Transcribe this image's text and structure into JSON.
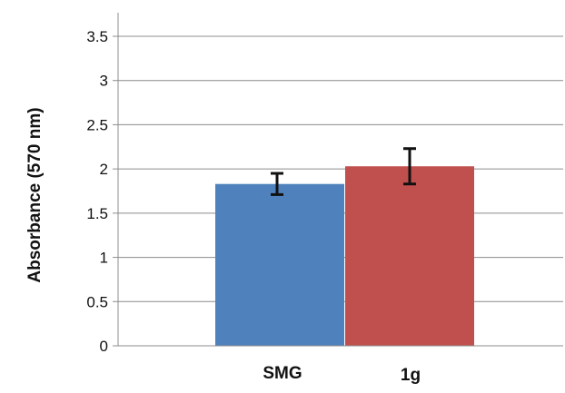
{
  "chart_data": {
    "type": "bar",
    "title": "",
    "xlabel": "",
    "ylabel": "Absorbance (570 nm)",
    "categories": [
      "SMG",
      "1g"
    ],
    "values": [
      1.83,
      2.03
    ],
    "errors": [
      0.12,
      0.2
    ],
    "colors": [
      "#4f81bd",
      "#c0504d"
    ],
    "ylim": [
      0,
      3.5
    ],
    "yticks": [
      0,
      0.5,
      1,
      1.5,
      2,
      2.5,
      3,
      3.5
    ],
    "ytick_labels": [
      "0",
      "0.5",
      "1",
      "1.5",
      "2",
      "2.5",
      "3",
      "3.5"
    ],
    "grid": true,
    "legend": "none"
  }
}
